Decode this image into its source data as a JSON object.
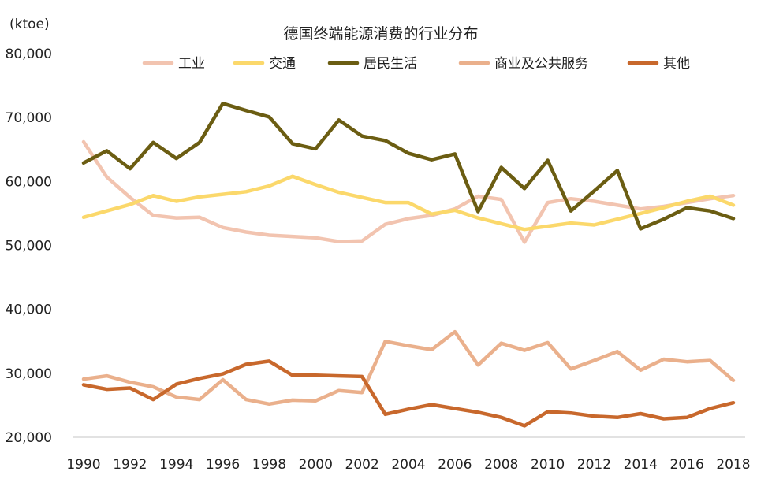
{
  "chart_data": {
    "type": "line",
    "title": "德国终端能源消费的行业分布",
    "ylabel": "(ktoe)",
    "xlabel": "",
    "ylim": [
      20000,
      80000
    ],
    "y_ticks": [
      20000,
      30000,
      40000,
      50000,
      60000,
      70000,
      80000
    ],
    "y_tick_labels": [
      "20,000",
      "30,000",
      "40,000",
      "50,000",
      "60,000",
      "70,000",
      "80,000"
    ],
    "x": [
      1990,
      1991,
      1992,
      1993,
      1994,
      1995,
      1996,
      1997,
      1998,
      1999,
      2000,
      2001,
      2002,
      2003,
      2004,
      2005,
      2006,
      2007,
      2008,
      2009,
      2010,
      2011,
      2012,
      2013,
      2014,
      2015,
      2016,
      2017,
      2018
    ],
    "x_tick_labels": [
      "1990",
      "1992",
      "1994",
      "1996",
      "1998",
      "2000",
      "2002",
      "2004",
      "2006",
      "2008",
      "2010",
      "2012",
      "2014",
      "2016",
      "2018"
    ],
    "legend_position": "top",
    "series": [
      {
        "name": "工业",
        "color": "#f2c4b0",
        "values": [
          66200,
          60700,
          57500,
          54700,
          54300,
          54400,
          52800,
          52100,
          51600,
          51400,
          51200,
          50600,
          50700,
          53300,
          54200,
          54700,
          55700,
          57700,
          57200,
          50500,
          56700,
          57300,
          56900,
          56300,
          55700,
          56100,
          56700,
          57300,
          57800
        ]
      },
      {
        "name": "交通",
        "color": "#fbd86b",
        "values": [
          54400,
          55400,
          56400,
          57800,
          56900,
          57600,
          58000,
          58400,
          59300,
          60800,
          59500,
          58300,
          57500,
          56700,
          56700,
          54900,
          55500,
          54300,
          53400,
          52500,
          53000,
          53500,
          53200,
          54100,
          55000,
          55900,
          56900,
          57700,
          56300
        ]
      },
      {
        "name": "居民生活",
        "color": "#6b5d12",
        "values": [
          62900,
          64800,
          62000,
          66100,
          63600,
          66100,
          72200,
          71100,
          70100,
          65900,
          65100,
          69600,
          67100,
          66400,
          64400,
          63400,
          64300,
          55300,
          62200,
          58900,
          63300,
          55400,
          58500,
          61700,
          52600,
          54100,
          55900,
          55400,
          54200
        ]
      },
      {
        "name": "商业及公共服务",
        "color": "#eab08c",
        "values": [
          29100,
          29600,
          28600,
          27900,
          26300,
          25900,
          29000,
          25900,
          25200,
          25800,
          25700,
          27300,
          27000,
          35000,
          34300,
          33700,
          36500,
          31300,
          34700,
          33600,
          34800,
          30700,
          32000,
          33400,
          30500,
          32200,
          31800,
          32000,
          28900
        ]
      },
      {
        "name": "其他",
        "color": "#c8682c",
        "values": [
          28200,
          27500,
          27700,
          25900,
          28300,
          29200,
          29900,
          31400,
          31900,
          29700,
          29700,
          29600,
          29500,
          23600,
          24400,
          25100,
          24500,
          23900,
          23100,
          21800,
          24000,
          23800,
          23300,
          23100,
          23700,
          22900,
          23100,
          24500,
          25400
        ]
      }
    ]
  }
}
